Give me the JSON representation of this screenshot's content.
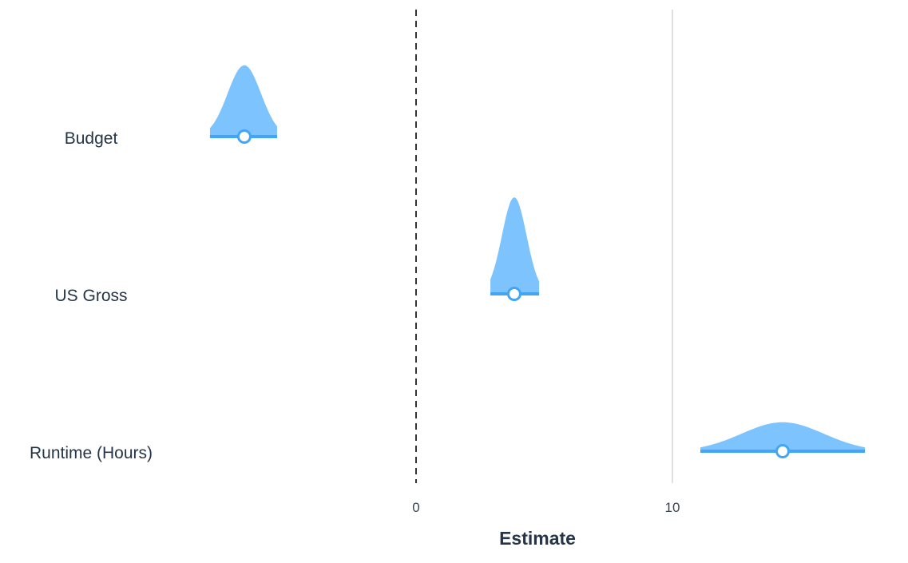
{
  "chart_data": {
    "type": "posterior-interval",
    "xlabel": "Estimate",
    "xticks": [
      0,
      10
    ],
    "reference_lines": [
      {
        "x": 0,
        "style": "dashed",
        "color": "#333333"
      },
      {
        "x": 10,
        "style": "solid",
        "color": "#e0e0e0"
      }
    ],
    "fill_color": "#7dc3fd",
    "line_color": "#42a5f5",
    "rows": [
      {
        "label": "Budget",
        "estimate": -6.7,
        "lower": -8.04,
        "upper": -5.42,
        "sd": 0.65
      },
      {
        "label": "US Gross",
        "estimate": 3.83,
        "lower": 2.9,
        "upper": 4.8,
        "sd": 0.48
      },
      {
        "label": "Runtime (Hours)",
        "estimate": 14.3,
        "lower": 11.09,
        "upper": 17.51,
        "sd": 1.6
      }
    ]
  }
}
